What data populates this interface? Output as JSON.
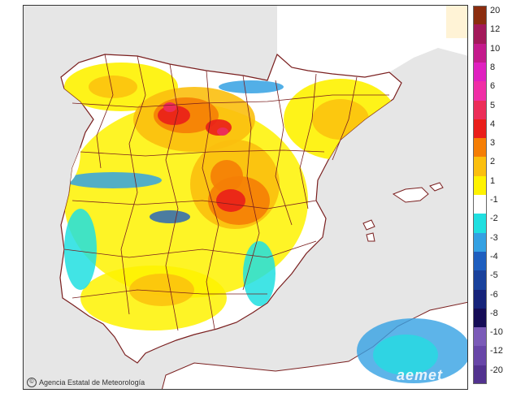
{
  "credit": {
    "symbol": "©",
    "agency": "Agencia Estatal de Meteorología"
  },
  "watermark": "aemet",
  "legend": {
    "labels": [
      "20",
      "12",
      "10",
      "8",
      "6",
      "5",
      "4",
      "3",
      "2",
      "1",
      "-1",
      "-2",
      "-3",
      "-4",
      "-5",
      "-6",
      "-8",
      "-10",
      "-12",
      "-20"
    ],
    "colors": [
      "#8b2c0e",
      "#a3195a",
      "#c41a8c",
      "#e020c0",
      "#f02ea6",
      "#ec2d58",
      "#ea1e1a",
      "#f57e05",
      "#fbbf0e",
      "#fef200",
      "#ffffff",
      "#20dfe0",
      "#34a1e3",
      "#1e5ebf",
      "#19419c",
      "#16237a",
      "#150c56",
      "#7b5bb8",
      "#6846a8",
      "#52328f"
    ]
  },
  "colors": {
    "sea": "#e6e6e6",
    "land": "#ffffff",
    "border": "#7a1f1f",
    "frame": "#333333"
  }
}
